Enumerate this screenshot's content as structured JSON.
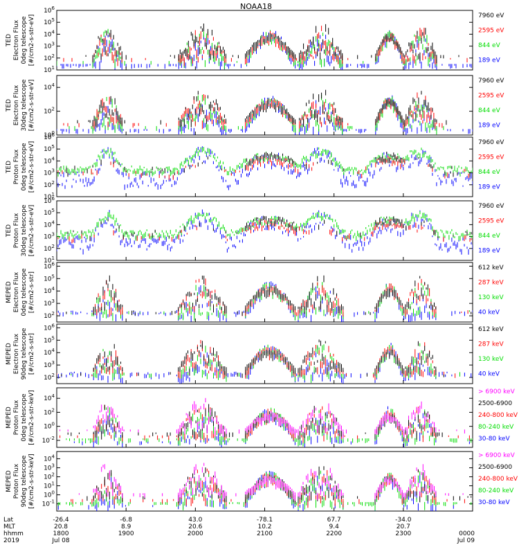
{
  "title": "NOAA18",
  "chart_data": [
    {
      "type": "line",
      "panel": "ted-electron-0deg",
      "ylabel": [
        "TED",
        "Electron Flux",
        "0deg telescope",
        "[#/cm2-s-str-eV]"
      ],
      "yticks": [
        "10^1",
        "10^2",
        "10^3",
        "10^4",
        "10^5",
        "10^6"
      ],
      "ylim": [
        1,
        6
      ],
      "legend": [
        "7960 eV",
        "2595 eV",
        "844 eV",
        "189 eV"
      ],
      "colors": [
        "#000000",
        "#ff0000",
        "#00dd00",
        "#0000ff"
      ]
    },
    {
      "type": "line",
      "panel": "ted-electron-30deg",
      "ylabel": [
        "TED",
        "Electron Flux",
        "30deg telescope",
        "[#/cm2-s-str-eV]"
      ],
      "yticks": [
        "10^0",
        "10^2",
        "10^4"
      ],
      "ylim": [
        0,
        5
      ],
      "legend": [
        "7960 eV",
        "2595 eV",
        "844 eV",
        "189 eV"
      ],
      "colors": [
        "#000000",
        "#ff0000",
        "#00dd00",
        "#0000ff"
      ]
    },
    {
      "type": "line",
      "panel": "ted-proton-0deg",
      "ylabel": [
        "TED",
        "Proton Flux",
        "0deg telescope",
        "[#/cm2-s-str-eV]"
      ],
      "yticks": [
        "10^1",
        "10^2",
        "10^3",
        "10^4",
        "10^5",
        "10^6"
      ],
      "ylim": [
        1,
        6
      ],
      "legend": [
        "7960 eV",
        "2595 eV",
        "844 eV",
        "189 eV"
      ],
      "colors": [
        "#000000",
        "#ff0000",
        "#00dd00",
        "#0000ff"
      ]
    },
    {
      "type": "line",
      "panel": "ted-proton-30deg",
      "ylabel": [
        "TED",
        "Proton Flux",
        "30deg telescope",
        "[#/cm2-s-str-eV]"
      ],
      "yticks": [
        "10^1",
        "10^2",
        "10^3",
        "10^4",
        "10^5",
        "10^6"
      ],
      "ylim": [
        1,
        6
      ],
      "legend": [
        "7960 eV",
        "2595 eV",
        "844 eV",
        "189 eV"
      ],
      "colors": [
        "#000000",
        "#ff0000",
        "#00dd00",
        "#0000ff"
      ]
    },
    {
      "type": "line",
      "panel": "meped-electron-0deg",
      "ylabel": [
        "MEPED",
        "Electron Flux",
        "0deg telescope",
        "[#/cm2-s-str]"
      ],
      "yticks": [
        "10^2",
        "10^3",
        "10^4",
        "10^5",
        "10^6"
      ],
      "ylim": [
        1.5,
        6.3
      ],
      "legend": [
        "612 keV",
        "287 keV",
        "130 keV",
        "40 keV"
      ],
      "colors": [
        "#000000",
        "#ff0000",
        "#00dd00",
        "#0000ff"
      ]
    },
    {
      "type": "line",
      "panel": "meped-electron-90deg",
      "ylabel": [
        "MEPED",
        "Electron Flux",
        "90deg telescope",
        "[#/cm2-s-str]"
      ],
      "yticks": [
        "10^2",
        "10^3",
        "10^4",
        "10^5",
        "10^6"
      ],
      "ylim": [
        1.5,
        6.3
      ],
      "legend": [
        "612 keV",
        "287 keV",
        "130 keV",
        "40 keV"
      ],
      "colors": [
        "#000000",
        "#ff0000",
        "#00dd00",
        "#0000ff"
      ]
    },
    {
      "type": "line",
      "panel": "meped-proton-0deg",
      "ylabel": [
        "MEPED",
        "Proton Flux",
        "0deg telescope",
        "[#/cm2-s-str-keV]"
      ],
      "yticks": [
        "10^-2",
        "10^0",
        "10^2",
        "10^4"
      ],
      "ylim": [
        -3,
        5.5
      ],
      "legend": [
        "> 6900 keV",
        "2500-6900",
        "240-800 keV",
        "80-240 keV",
        "30-80 keV"
      ],
      "colors": [
        "#ff00ff",
        "#000000",
        "#ff0000",
        "#00dd00",
        "#0000ff"
      ]
    },
    {
      "type": "line",
      "panel": "meped-proton-90deg",
      "ylabel": [
        "MEPED",
        "Proton Flux",
        "90deg telescope",
        "[#/cm2-s-str-keV]"
      ],
      "yticks": [
        "10^-1",
        "10^0",
        "10^1",
        "10^2",
        "10^3",
        "10^4"
      ],
      "ylim": [
        -1.8,
        4.8
      ],
      "legend": [
        "> 6900 keV",
        "2500-6900",
        "240-800 keV",
        "80-240 keV",
        "30-80 keV"
      ],
      "colors": [
        "#ff00ff",
        "#000000",
        "#ff0000",
        "#00dd00",
        "#0000ff"
      ]
    }
  ],
  "xaxis": {
    "row_labels": [
      "Lat",
      "MLT",
      "hhmm",
      "2019"
    ],
    "ticks": [
      {
        "lat": "-26.4",
        "mlt": "20.8",
        "hhmm": "1800",
        "date": "Jul 08"
      },
      {
        "lat": "-6.8",
        "mlt": "8.9",
        "hhmm": "1900",
        "date": ""
      },
      {
        "lat": "43.0",
        "mlt": "20.6",
        "hhmm": "2000",
        "date": ""
      },
      {
        "lat": "-78.1",
        "mlt": "10.2",
        "hhmm": "2100",
        "date": ""
      },
      {
        "lat": "67.7",
        "mlt": "9.4",
        "hhmm": "2200",
        "date": ""
      },
      {
        "lat": "-34.0",
        "mlt": "20.7",
        "hhmm": "2300",
        "date": ""
      },
      {
        "lat": "",
        "mlt": "",
        "hhmm": "0000",
        "date": "Jul 09"
      }
    ]
  }
}
